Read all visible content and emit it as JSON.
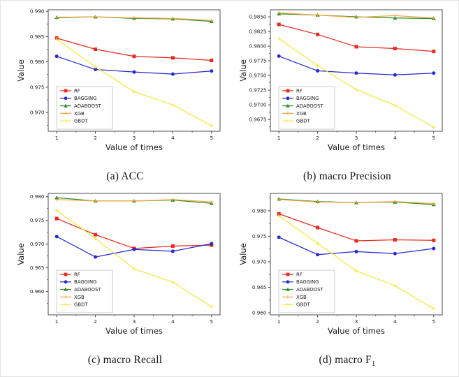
{
  "figure": {
    "xlabel": "Value of times",
    "ylabel": "Value",
    "x_categories": [
      1,
      2,
      3,
      4,
      5
    ],
    "legend_position": "lower left",
    "legend": [
      {
        "name": "RF",
        "color": "#e8291f",
        "marker": "square"
      },
      {
        "name": "BAGGING",
        "color": "#2728d4",
        "marker": "circle"
      },
      {
        "name": "ADABOOST",
        "color": "#2f8f2f",
        "marker": "triangle"
      },
      {
        "name": "XGB",
        "color": "#f3a83b",
        "marker": "plus"
      },
      {
        "name": "GBDT",
        "color": "#f2e83d",
        "marker": "plus"
      }
    ]
  },
  "chart_data": [
    {
      "type": "line",
      "caption": {
        "pre": "(a) ACC",
        "sub": ""
      },
      "xlabel": "Value of times",
      "ylabel": "Value",
      "x": [
        1,
        2,
        3,
        4,
        5
      ],
      "xlim": [
        0.78,
        5.22
      ],
      "ylim": [
        0.9663,
        0.9903
      ],
      "yticks": [
        0.97,
        0.975,
        0.98,
        0.985,
        0.99
      ],
      "ytick_labels": [
        "0.970",
        "0.975",
        "0.980",
        "0.985",
        "0.990"
      ],
      "grid": false,
      "series": [
        {
          "name": "RF",
          "color": "#e8291f",
          "marker": "square",
          "values": [
            0.9847,
            0.9825,
            0.9811,
            0.9808,
            0.9803
          ]
        },
        {
          "name": "BAGGING",
          "color": "#2728d4",
          "marker": "circle",
          "values": [
            0.9811,
            0.9785,
            0.978,
            0.9776,
            0.9782
          ]
        },
        {
          "name": "ADABOOST",
          "color": "#2f8f2f",
          "marker": "triangle",
          "values": [
            0.9888,
            0.9889,
            0.9886,
            0.9885,
            0.988
          ]
        },
        {
          "name": "XGB",
          "color": "#f3a83b",
          "marker": "plus",
          "values": [
            0.9887,
            0.9889,
            0.9887,
            0.9886,
            0.9882
          ]
        },
        {
          "name": "GBDT",
          "color": "#f2e83d",
          "marker": "plus",
          "values": [
            0.9845,
            0.979,
            0.9741,
            0.9715,
            0.9674
          ]
        }
      ]
    },
    {
      "type": "line",
      "caption": {
        "pre": "(b) macro Precision",
        "sub": ""
      },
      "xlabel": "Value of times",
      "ylabel": "Value",
      "x": [
        1,
        2,
        3,
        4,
        5
      ],
      "xlim": [
        0.78,
        5.22
      ],
      "ylim": [
        0.9655,
        0.9862
      ],
      "yticks": [
        0.9675,
        0.97,
        0.9725,
        0.975,
        0.9775,
        0.98,
        0.9825,
        0.985
      ],
      "ytick_labels": [
        "0.9675",
        "0.9700",
        "0.9725",
        "0.9750",
        "0.9775",
        "0.9800",
        "0.9825",
        "0.9850"
      ],
      "grid": false,
      "series": [
        {
          "name": "RF",
          "color": "#e8291f",
          "marker": "square",
          "values": [
            0.9837,
            0.982,
            0.9799,
            0.9796,
            0.9791
          ]
        },
        {
          "name": "BAGGING",
          "color": "#2728d4",
          "marker": "circle",
          "values": [
            0.9783,
            0.9758,
            0.9754,
            0.9751,
            0.9754
          ]
        },
        {
          "name": "ADABOOST",
          "color": "#2f8f2f",
          "marker": "triangle",
          "values": [
            0.9855,
            0.9853,
            0.985,
            0.9848,
            0.9847
          ]
        },
        {
          "name": "XGB",
          "color": "#f3a83b",
          "marker": "plus",
          "values": [
            0.9857,
            0.9853,
            0.9849,
            0.9852,
            0.9848
          ]
        },
        {
          "name": "GBDT",
          "color": "#f2e83d",
          "marker": "plus",
          "values": [
            0.9813,
            0.9767,
            0.9726,
            0.9699,
            0.9662
          ]
        }
      ]
    },
    {
      "type": "line",
      "caption": {
        "pre": "(c) macro Recall",
        "sub": ""
      },
      "xlabel": "Value of times",
      "ylabel": "Value",
      "x": [
        1,
        2,
        3,
        4,
        5
      ],
      "xlim": [
        0.78,
        5.22
      ],
      "ylim": [
        0.9551,
        0.9807
      ],
      "yticks": [
        0.96,
        0.965,
        0.97,
        0.975,
        0.98
      ],
      "ytick_labels": [
        "0.960",
        "0.965",
        "0.970",
        "0.975",
        "0.980"
      ],
      "grid": false,
      "series": [
        {
          "name": "RF",
          "color": "#e8291f",
          "marker": "square",
          "values": [
            0.9754,
            0.972,
            0.9691,
            0.9696,
            0.9698
          ]
        },
        {
          "name": "BAGGING",
          "color": "#2728d4",
          "marker": "circle",
          "values": [
            0.9716,
            0.9673,
            0.9689,
            0.9685,
            0.9701
          ]
        },
        {
          "name": "ADABOOST",
          "color": "#2f8f2f",
          "marker": "triangle",
          "values": [
            0.9798,
            0.9791,
            0.9791,
            0.9793,
            0.9786
          ]
        },
        {
          "name": "XGB",
          "color": "#f3a83b",
          "marker": "plus",
          "values": [
            0.9794,
            0.9791,
            0.9791,
            0.9794,
            0.9789
          ]
        },
        {
          "name": "GBDT",
          "color": "#f2e83d",
          "marker": "plus",
          "values": [
            0.9771,
            0.9712,
            0.9648,
            0.962,
            0.9568
          ]
        }
      ]
    },
    {
      "type": "line",
      "caption": {
        "pre": "(d) macro F",
        "sub": "1"
      },
      "xlabel": "Value of times",
      "ylabel": "Value",
      "x": [
        1,
        2,
        3,
        4,
        5
      ],
      "xlim": [
        0.78,
        5.22
      ],
      "ylim": [
        0.9596,
        0.9834
      ],
      "yticks": [
        0.96,
        0.965,
        0.97,
        0.975,
        0.98
      ],
      "ytick_labels": [
        "0.960",
        "0.965",
        "0.970",
        "0.975",
        "0.980"
      ],
      "grid": false,
      "series": [
        {
          "name": "RF",
          "color": "#e8291f",
          "marker": "square",
          "values": [
            0.9794,
            0.9767,
            0.9741,
            0.9743,
            0.9742
          ]
        },
        {
          "name": "BAGGING",
          "color": "#2728d4",
          "marker": "circle",
          "values": [
            0.9748,
            0.9714,
            0.972,
            0.9716,
            0.9726
          ]
        },
        {
          "name": "ADABOOST",
          "color": "#2f8f2f",
          "marker": "triangle",
          "values": [
            0.9823,
            0.9818,
            0.9816,
            0.9817,
            0.9812
          ]
        },
        {
          "name": "XGB",
          "color": "#f3a83b",
          "marker": "plus",
          "values": [
            0.9822,
            0.9817,
            0.9816,
            0.9818,
            0.9814
          ]
        },
        {
          "name": "GBDT",
          "color": "#f2e83d",
          "marker": "plus",
          "values": [
            0.979,
            0.9736,
            0.9682,
            0.9653,
            0.9608
          ]
        }
      ]
    }
  ]
}
